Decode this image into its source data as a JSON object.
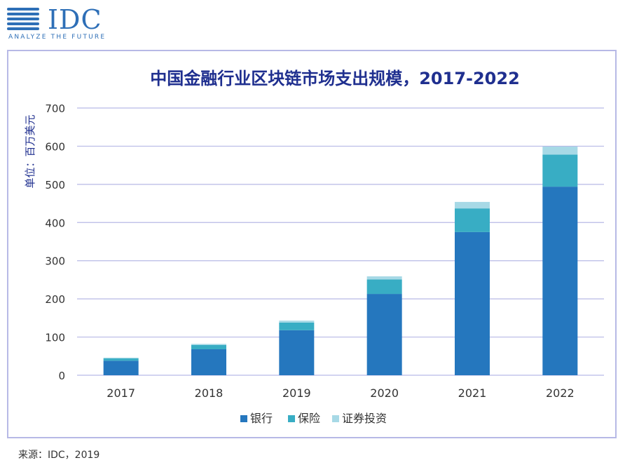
{
  "logo": {
    "text": "IDC",
    "tagline": "ANALYZE THE FUTURE"
  },
  "source": "来源：IDC，2019",
  "chart_data": {
    "type": "bar",
    "stacked": true,
    "title": "中国金融行业区块链市场支出规模，2017-2022",
    "ylabel": "单位：百万美元",
    "xlabel": "",
    "categories": [
      "2017",
      "2018",
      "2019",
      "2020",
      "2021",
      "2022"
    ],
    "ylim": [
      0,
      700
    ],
    "yticks": [
      0,
      100,
      200,
      300,
      400,
      500,
      600,
      700
    ],
    "grid": true,
    "legend_position": "bottom",
    "series": [
      {
        "name": "银行",
        "color": "#2577be",
        "values": [
          38,
          68,
          118,
          213,
          375,
          494
        ]
      },
      {
        "name": "保险",
        "color": "#38adc4",
        "values": [
          6,
          11,
          20,
          38,
          62,
          84
        ]
      },
      {
        "name": "证券投资",
        "color": "#a7d9e6",
        "values": [
          2,
          3,
          5,
          8,
          17,
          21
        ]
      }
    ]
  }
}
